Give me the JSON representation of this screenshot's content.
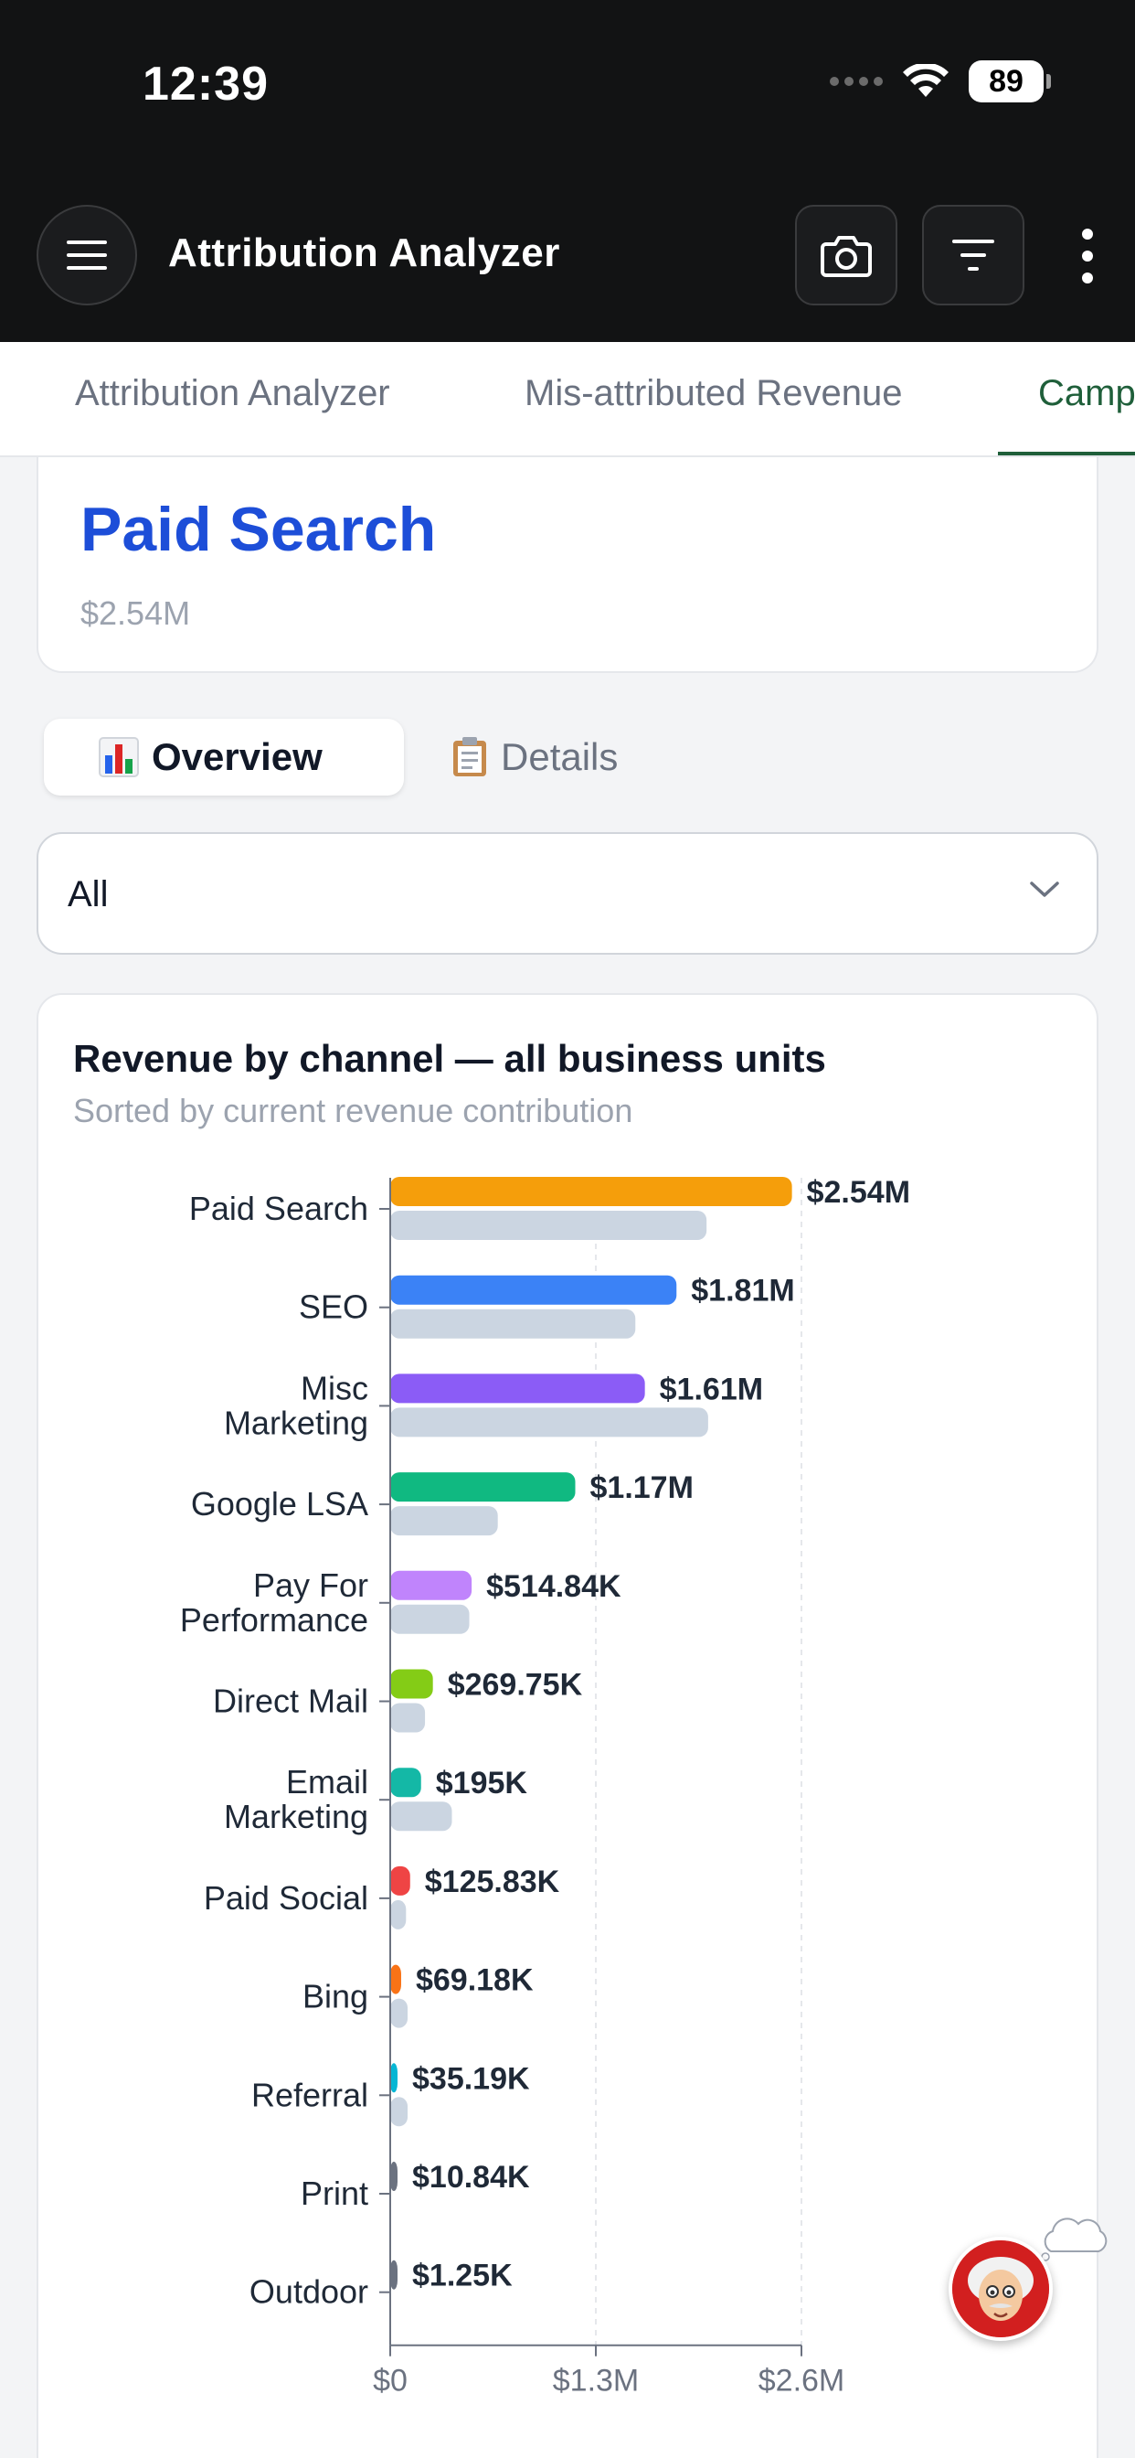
{
  "status_bar": {
    "time": "12:39",
    "battery": "89"
  },
  "header": {
    "title": "Attribution Analyzer",
    "menu_icon": "hamburger-icon",
    "camera_icon": "camera-icon",
    "filter_icon": "filter-icon",
    "more_icon": "more-vertical-icon"
  },
  "tabs": [
    {
      "label": "Attribution Analyzer"
    },
    {
      "label": "Mis-attributed Revenue"
    },
    {
      "label": "Camp"
    }
  ],
  "hero": {
    "title": "Paid Search",
    "value": "$2.54M"
  },
  "segments": [
    {
      "icon": "bar-chart-icon",
      "label": "Overview"
    },
    {
      "icon": "clipboard-icon",
      "label": "Details"
    }
  ],
  "dropdown": {
    "value": "All"
  },
  "chart": {
    "title": "Revenue by channel — all business units",
    "subtitle": "Sorted by current revenue contribution"
  },
  "chart_data": {
    "type": "bar",
    "orientation": "horizontal",
    "categories": [
      "Paid Search",
      "SEO",
      "Misc Marketing",
      "Google LSA",
      "Pay For Performance",
      "Direct Mail",
      "Email Marketing",
      "Paid Social",
      "Bing",
      "Referral",
      "Print",
      "Outdoor"
    ],
    "series": [
      {
        "values": [
          2540000,
          1810000,
          1610000,
          1170000,
          514840,
          269750,
          195000,
          125830,
          69180,
          35190,
          10840,
          1250
        ],
        "labels": [
          "$2.54M",
          "$1.81M",
          "$1.61M",
          "$1.17M",
          "$514.84K",
          "$269.75K",
          "$195K",
          "$125.83K",
          "$69.18K",
          "$35.19K",
          "$10.84K",
          "$1.25K"
        ],
        "colors": [
          "#f59e0b",
          "#3b82f6",
          "#8b5cf6",
          "#10b981",
          "#c084fc",
          "#84cc16",
          "#14b8a6",
          "#ef4444",
          "#f97316",
          "#06b6d4",
          "#6b7280",
          "#6b7280"
        ]
      },
      {
        "values": [
          2000000,
          1550000,
          2010000,
          680000,
          500000,
          220000,
          390000,
          100000,
          110000,
          110000,
          0,
          0
        ],
        "color": "#cbd5e1"
      }
    ],
    "xlim": [
      0,
      2600000
    ],
    "xticks": [
      {
        "value": 0,
        "label": "$0"
      },
      {
        "value": 1300000,
        "label": "$1.3M"
      },
      {
        "value": 2600000,
        "label": "$2.6M"
      }
    ],
    "grid": "vertical dashed"
  },
  "mascot": {
    "icon": "einstein-avatar-icon"
  }
}
